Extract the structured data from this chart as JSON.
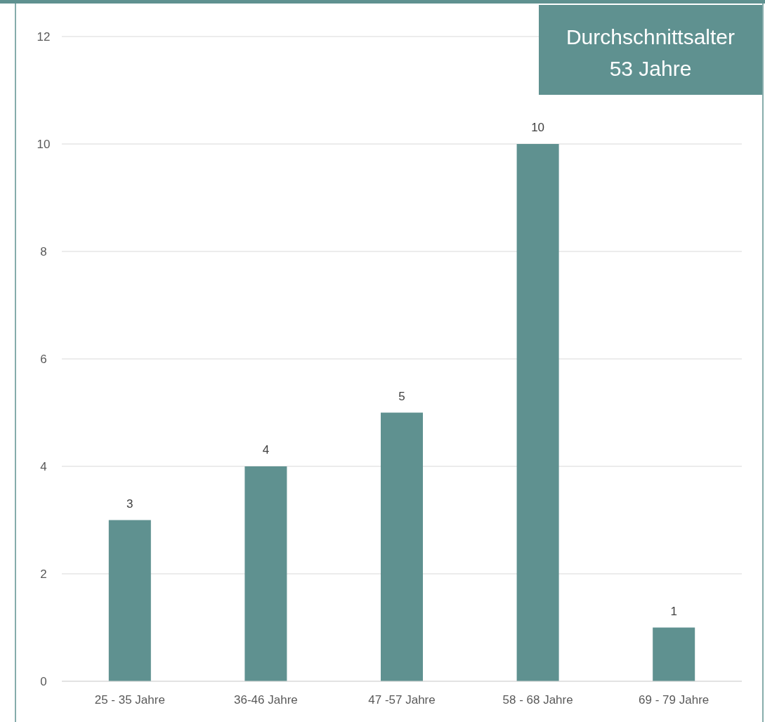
{
  "chart_data": {
    "type": "bar",
    "annotations": [
      "Durchschnittsalter\n53 Jahre"
    ],
    "categories": [
      "25 - 35 Jahre",
      "36-46 Jahre",
      "47 -57 Jahre",
      "58 - 68 Jahre",
      "69 - 79 Jahre"
    ],
    "values": [
      3,
      4,
      5,
      10,
      1
    ],
    "color": "#5f9190",
    "ylim": [
      0,
      12
    ],
    "yticks": [
      0,
      2,
      4,
      6,
      8,
      10,
      12
    ],
    "grid": "y",
    "data_labels": true
  }
}
